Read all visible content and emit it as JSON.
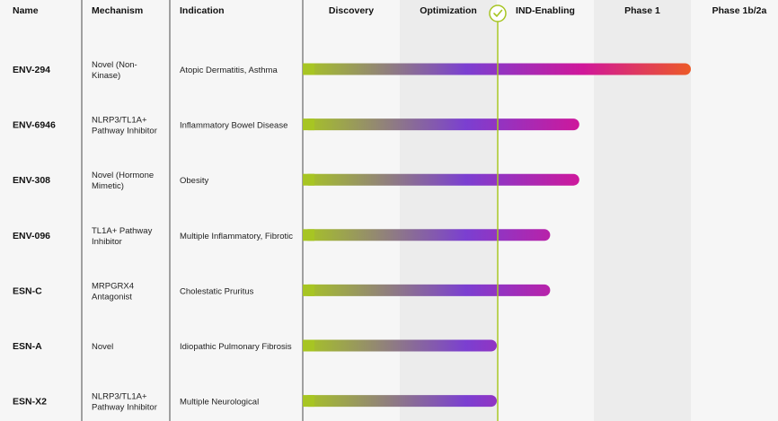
{
  "header": {
    "name": "Name",
    "mechanism": "Mechanism",
    "indication": "Indication"
  },
  "colors": {
    "lime": "#a7c523",
    "purple": "#7b3fd1",
    "magenta": "#d0179a",
    "orange": "#ec5a26",
    "col_a": "#f6f6f6",
    "col_b": "#ececec"
  },
  "chart_data": {
    "type": "bar",
    "orientation": "horizontal",
    "stages": [
      "Discovery",
      "Optimization",
      "IND-Enabling",
      "Phase 1",
      "Phase 1b/2a"
    ],
    "current_marker_stage_position": 2.0,
    "marker_icon": "check-circle-icon",
    "series": [
      {
        "name": "ENV-294",
        "mechanism": [
          "Novel (Non-",
          "Kinase)"
        ],
        "indication": "Atopic Dermatitis, Asthma",
        "progress": 4.0
      },
      {
        "name": "ENV-6946",
        "mechanism": [
          "NLRP3/TL1A+",
          "Pathway Inhibitor"
        ],
        "indication": "Inflammatory Bowel Disease",
        "progress": 2.85
      },
      {
        "name": "ENV-308",
        "mechanism": [
          "Novel (Hormone",
          "Mimetic)"
        ],
        "indication": "Obesity",
        "progress": 2.85
      },
      {
        "name": "ENV-096",
        "mechanism": [
          "TL1A+ Pathway",
          "Inhibitor"
        ],
        "indication": "Multiple Inflammatory, Fibrotic",
        "progress": 2.55
      },
      {
        "name": "ESN-C",
        "mechanism": [
          "MRPGRX4",
          "Antagonist"
        ],
        "indication": "Cholestatic Pruritus",
        "progress": 2.55
      },
      {
        "name": "ESN-A",
        "mechanism": [
          "Novel"
        ],
        "indication": "Idiopathic Pulmonary Fibrosis",
        "progress": 2.0
      },
      {
        "name": "ESN-X2",
        "mechanism": [
          "NLRP3/TL1A+",
          "Pathway Inhibitor"
        ],
        "indication": "Multiple Neurological",
        "progress": 2.0
      }
    ]
  }
}
